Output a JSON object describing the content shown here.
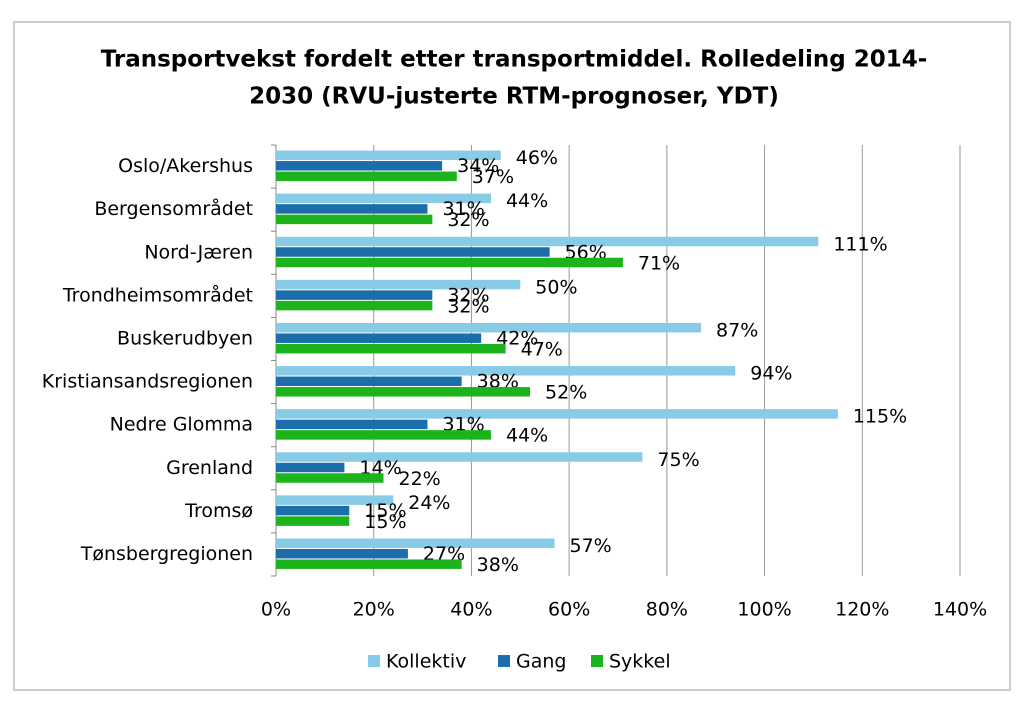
{
  "chart_data": {
    "type": "bar",
    "orientation": "horizontal",
    "title": [
      "Transportvekst fordelt etter transportmiddel. Rolledeling 2014-",
      "2030 (RVU-justerte RTM-prognoser,  YDT)"
    ],
    "categories": [
      "Oslo/Akershus",
      "Bergensområdet",
      "Nord-Jæren",
      "Trondheimsområdet",
      "Buskerudbyen",
      "Kristiansandsregionen",
      "Nedre Glomma",
      "Grenland",
      "Tromsø",
      "Tønsbergregionen"
    ],
    "series": [
      {
        "name": "Kollektiv",
        "color": "#87cbe6",
        "values": [
          46,
          44,
          111,
          50,
          87,
          94,
          115,
          75,
          24,
          57
        ],
        "value_labels": [
          "46%",
          "44%",
          "111%",
          "50%",
          "87%",
          "94%",
          "115%",
          "75%",
          "24%",
          "57%"
        ]
      },
      {
        "name": "Gang",
        "color": "#1b6ea9",
        "values": [
          34,
          31,
          56,
          32,
          42,
          38,
          31,
          14,
          15,
          27
        ],
        "value_labels": [
          "34%",
          "31%",
          "56%",
          "32%",
          "42%",
          "38%",
          "31%",
          "14%",
          "15%",
          "27%"
        ]
      },
      {
        "name": "Sykkel",
        "color": "#1cb31c",
        "values": [
          37,
          32,
          71,
          32,
          47,
          52,
          44,
          22,
          15,
          38
        ],
        "value_labels": [
          "37%",
          "32%",
          "71%",
          "32%",
          "47%",
          "52%",
          "44%",
          "22%",
          "15%",
          "38%"
        ]
      }
    ],
    "xlim": [
      0,
      140
    ],
    "xticks": [
      {
        "value": 0,
        "label": "0%"
      },
      {
        "value": 20,
        "label": "20%"
      },
      {
        "value": 40,
        "label": "40%"
      },
      {
        "value": 60,
        "label": "60%"
      },
      {
        "value": 80,
        "label": "80%"
      },
      {
        "value": 100,
        "label": "100%"
      },
      {
        "value": 120,
        "label": "120%"
      },
      {
        "value": 140,
        "label": "140%"
      }
    ],
    "grid": true,
    "legend": "bottom"
  }
}
